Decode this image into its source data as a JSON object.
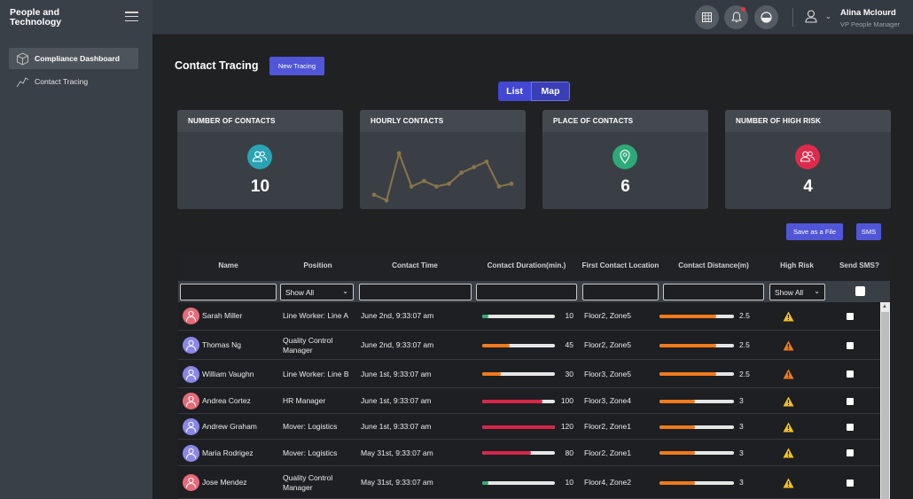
{
  "app": {
    "title": "People and Technology"
  },
  "header": {
    "user_name": "Alina Mclourd",
    "user_role": "VP People Manager"
  },
  "sidebar": {
    "items": [
      {
        "label": "Compliance Dashboard",
        "icon": "cube-icon",
        "active": true
      },
      {
        "label": "Contact Tracing",
        "icon": "line-chart-icon",
        "active": false
      }
    ]
  },
  "page": {
    "title": "Contact Tracing",
    "new_button": "New Tracing"
  },
  "view_toggle": {
    "list": "List",
    "map": "Map",
    "selected": "Map"
  },
  "cards": [
    {
      "title": "NUMBER OF CONTACTS",
      "value": "10",
      "icon": "people-icon",
      "color": "#2aa3b4"
    },
    {
      "title": "HOURLY CONTACTS",
      "sparkline": [
        3,
        1,
        18,
        6,
        8,
        6,
        7,
        11,
        13,
        15,
        6,
        7
      ]
    },
    {
      "title": "PLACE OF CONTACTS",
      "value": "6",
      "icon": "location-pin-icon",
      "color": "#2eaa78"
    },
    {
      "title": "NUMBER OF HIGH RISK",
      "value": "4",
      "icon": "people-icon",
      "color": "#e02a4b"
    }
  ],
  "actions": {
    "save": "Save as a File",
    "sms": "SMS"
  },
  "table": {
    "columns": [
      "Name",
      "Position",
      "Contact Time",
      "Contact Duration(min.)",
      "First Contact Location",
      "Contact Distance(m)",
      "High Risk",
      "Send SMS?"
    ],
    "filter": {
      "show_all": "Show All"
    },
    "rows": [
      {
        "name": "Sarah Miller",
        "position": "Line Worker: Line A",
        "time": "June 2nd, 9:33:07 am",
        "duration": "10",
        "location": "Floor2, Zone5",
        "distance": "2.5",
        "avatar": "#e76a78"
      },
      {
        "name": "Thomas Ng",
        "position": "Quality Control Manager",
        "time": "June 2nd, 9:33:07 am",
        "duration": "45",
        "location": "Floor2, Zone5",
        "distance": "2.5",
        "avatar": "#8b87e8"
      },
      {
        "name": "William Vaughn",
        "position": "Line Worker: Line B",
        "time": "June 1st, 9:33:07 am",
        "duration": "30",
        "location": "Floor3, Zone5",
        "distance": "2.5",
        "avatar": "#8b87e8"
      },
      {
        "name": "Andrea Cortez",
        "position": "HR Manager",
        "time": "June 1st, 9:33:07 am",
        "duration": "100",
        "location": "Floor3, Zone4",
        "distance": "3",
        "avatar": "#e76a78"
      },
      {
        "name": "Andrew Graham",
        "position": "Mover: Logistics",
        "time": "June 1st, 9:33:07 am",
        "duration": "120",
        "location": "Floor2, Zone1",
        "distance": "3",
        "avatar": "#8b87e8"
      },
      {
        "name": "Maria Rodrigez",
        "position": "Mover: Logistics",
        "time": "May 31st, 9:33:07 am",
        "duration": "80",
        "location": "Floor2, Zone1",
        "distance": "3",
        "avatar": "#8b87e8"
      },
      {
        "name": "Jose Mendez",
        "position": "Quality Control Manager",
        "time": "May 31st, 9:33:07 am",
        "duration": "10",
        "location": "Floor4, Zone2",
        "distance": "3",
        "avatar": "#e76a78"
      }
    ]
  },
  "colors": {
    "accent": "#5156d8",
    "green": "#2eaa78",
    "orange": "#f07a1c",
    "red": "#d9254a",
    "warning": "#f4c21b"
  }
}
